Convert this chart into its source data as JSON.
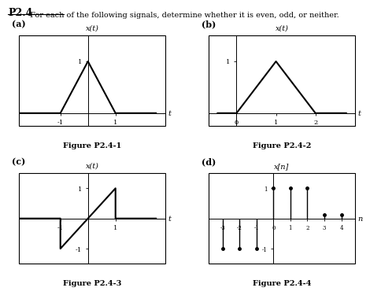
{
  "title": "P2.4",
  "subtitle": "For each of the following signals, determine whether it is even, odd, or neither.",
  "fig_a": {
    "label": "(a)",
    "ylabel": "x(t)",
    "xlabel": "t",
    "caption": "Figure P2.4-1",
    "signal_x": [
      -2.5,
      -1,
      0,
      1,
      2.5
    ],
    "signal_y": [
      0,
      0,
      1,
      0,
      0
    ],
    "xticks": [
      -1,
      1
    ],
    "yticks": [
      1
    ],
    "xlim": [
      -2.5,
      2.8
    ],
    "ylim": [
      -0.25,
      1.5
    ]
  },
  "fig_b": {
    "label": "(b)",
    "ylabel": "x(t)",
    "xlabel": "t",
    "caption": "Figure P2.4-2",
    "signal_x": [
      -0.5,
      0,
      1,
      2,
      2.8
    ],
    "signal_y": [
      0,
      0,
      1,
      0,
      0
    ],
    "xticks": [
      0,
      1,
      2
    ],
    "yticks": [
      1
    ],
    "xlim": [
      -0.7,
      3.0
    ],
    "ylim": [
      -0.25,
      1.5
    ]
  },
  "fig_c": {
    "label": "(c)",
    "ylabel": "x(t)",
    "xlabel": "t",
    "caption": "Figure P2.4-3",
    "signal_x": [
      -2.5,
      -1,
      -1,
      1,
      1,
      2.5
    ],
    "signal_y": [
      0,
      0,
      -1,
      1,
      0,
      0
    ],
    "xticks": [
      -1,
      1
    ],
    "yticks": [
      -1,
      1
    ],
    "xlim": [
      -2.5,
      2.8
    ],
    "ylim": [
      -1.5,
      1.5
    ]
  },
  "fig_d": {
    "label": "(d)",
    "ylabel": "x[n]",
    "xlabel": "n",
    "caption": "Figure P2.4-4",
    "stems_x": [
      -3,
      -2,
      -1,
      0,
      1,
      2,
      3,
      4
    ],
    "stems_y": [
      -1,
      -1,
      -1,
      1,
      1,
      1,
      0.12,
      0.12
    ],
    "xticks": [
      -3,
      -2,
      -1,
      0,
      1,
      2,
      3,
      4
    ],
    "yticks": [
      -1,
      1
    ],
    "xlim": [
      -3.8,
      4.8
    ],
    "ylim": [
      -1.5,
      1.5
    ]
  },
  "bg_color": "#ffffff",
  "line_color": "#000000",
  "font_size_title": 9,
  "font_size_label": 7,
  "font_size_tick": 6,
  "font_size_caption": 7,
  "font_size_subtitle": 7
}
